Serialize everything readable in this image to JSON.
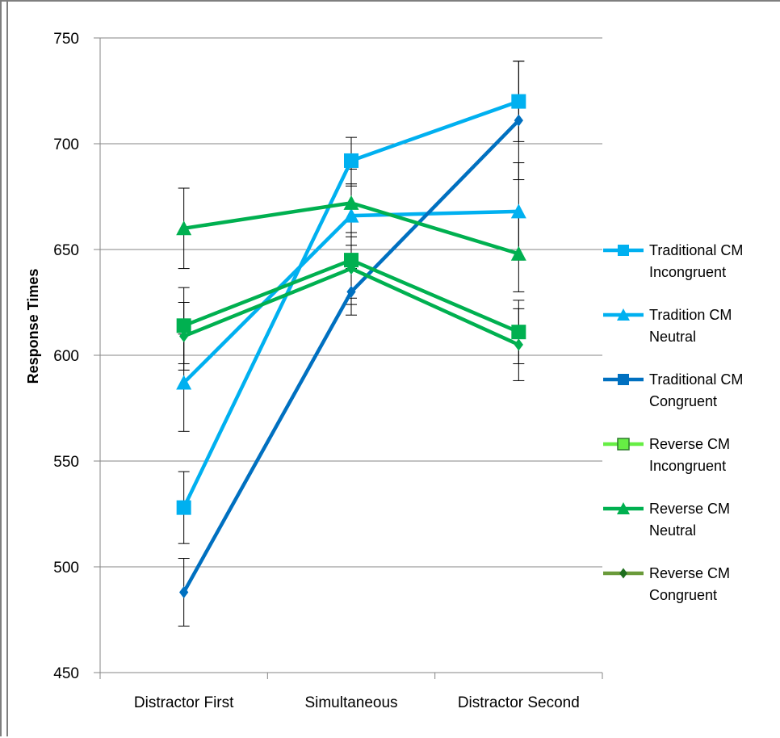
{
  "chart_data": {
    "type": "line",
    "title": "",
    "xlabel": "",
    "ylabel": "Response Times",
    "categories": [
      "Distractor First",
      "Simultaneous",
      "Distractor Second"
    ],
    "ylim": [
      450,
      750
    ],
    "yticks": [
      450,
      500,
      550,
      600,
      650,
      700,
      750
    ],
    "grid": "horizontal",
    "legend_position": "right",
    "series": [
      {
        "name": "Traditional CM Incongruent",
        "legend_lines": [
          "Traditional CM",
          "Incongruent"
        ],
        "color": "#00b0f0",
        "marker": "square",
        "values": [
          528,
          692,
          720
        ],
        "error": [
          17,
          11,
          19
        ]
      },
      {
        "name": "Tradition CM Neutral",
        "legend_lines": [
          "Tradition CM",
          "Neutral"
        ],
        "color": "#00b0f0",
        "marker": "triangle",
        "values": [
          587,
          666,
          668
        ],
        "error": [
          23,
          14,
          23
        ]
      },
      {
        "name": "Traditional CM Congruent",
        "legend_lines": [
          "Traditional CM",
          "Congruent"
        ],
        "color": "#0070c0",
        "marker": "diamond",
        "values": [
          488,
          630,
          711
        ],
        "error": [
          16,
          11,
          28
        ]
      },
      {
        "name": "Reverse CM Incongruent",
        "legend_lines": [
          "Reverse CM",
          "Incongruent"
        ],
        "color": "#00b050",
        "marker": "square",
        "values": [
          614,
          645,
          611
        ],
        "error": [
          18,
          18,
          15
        ]
      },
      {
        "name": "Reverse CM Neutral",
        "legend_lines": [
          "Reverse CM",
          "Neutral"
        ],
        "color": "#00b050",
        "marker": "triangle",
        "values": [
          660,
          672,
          648
        ],
        "error": [
          19,
          16,
          18
        ]
      },
      {
        "name": "Reverse CM Congruent",
        "legend_lines": [
          "Reverse CM",
          "Congruent"
        ],
        "color": "#00b050",
        "marker": "diamond",
        "values": [
          609,
          641,
          605
        ],
        "error": [
          16,
          17,
          17
        ]
      }
    ],
    "legend_swatches": [
      {
        "line": "#00b0f0",
        "marker": "square",
        "fill": "#00b0f0"
      },
      {
        "line": "#00b0f0",
        "marker": "triangle",
        "fill": "#00b0f0"
      },
      {
        "line": "#0070c0",
        "marker": "square",
        "fill": "#0070c0"
      },
      {
        "line": "#66ee44",
        "marker": "square",
        "fill": "#66ee44",
        "stroke": "#2d7a2d"
      },
      {
        "line": "#00b050",
        "marker": "triangle",
        "fill": "#00b050"
      },
      {
        "line": "#6a9a3a",
        "marker": "diamond",
        "fill": "#1e6e1e"
      }
    ]
  }
}
